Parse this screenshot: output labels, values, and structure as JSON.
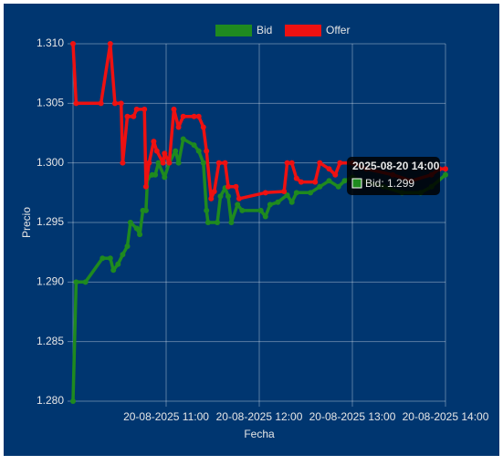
{
  "chart_data": {
    "type": "line",
    "ylabel": "Precio",
    "xlabel": "Fecha",
    "grid": true,
    "legend": "top",
    "ylim": [
      1.28,
      1.31
    ],
    "yticks": [
      {
        "value": 1.28,
        "label": "1.280"
      },
      1.285,
      {
        "value": 1.29,
        "label": "1.290"
      },
      1.295,
      {
        "value": 1.3,
        "label": "1.300"
      },
      1.305,
      {
        "value": 1.31,
        "label": "1.310"
      }
    ],
    "xlim": [
      "2025-08-20 10:00",
      "2025-08-20 14:00"
    ],
    "xticks": [
      {
        "value": "2025-08-20 11:00",
        "label": "20-08-2025 11:00"
      },
      {
        "value": "2025-08-20 12:00",
        "label": "20-08-2025 12:00"
      },
      {
        "value": "2025-08-20 13:00",
        "label": "20-08-2025 13:00"
      },
      {
        "value": "2025-08-20 14:00",
        "label": "20-08-2025 14:00"
      }
    ],
    "series": [
      {
        "name": "Bid",
        "color": "#1f8a1f",
        "x": [
          "2025-08-20 10:00",
          "2025-08-20 10:02",
          "2025-08-20 10:08",
          "2025-08-20 10:19",
          "2025-08-20 10:24",
          "2025-08-20 10:26",
          "2025-08-20 10:29",
          "2025-08-20 10:32",
          "2025-08-20 10:35",
          "2025-08-20 10:37",
          "2025-08-20 10:41",
          "2025-08-20 10:43",
          "2025-08-20 10:45",
          "2025-08-20 10:47",
          "2025-08-20 10:48",
          "2025-08-20 10:51",
          "2025-08-20 10:53",
          "2025-08-20 10:55",
          "2025-08-20 10:59",
          "2025-08-20 11:02",
          "2025-08-20 11:06",
          "2025-08-20 11:08",
          "2025-08-20 11:11",
          "2025-08-20 11:18",
          "2025-08-20 11:21",
          "2025-08-20 11:24",
          "2025-08-20 11:26",
          "2025-08-20 11:27",
          "2025-08-20 11:33",
          "2025-08-20 11:35",
          "2025-08-20 11:38",
          "2025-08-20 11:40",
          "2025-08-20 11:42",
          "2025-08-20 11:46",
          "2025-08-20 11:49",
          "2025-08-20 12:01",
          "2025-08-20 12:04",
          "2025-08-20 12:07",
          "2025-08-20 12:12",
          "2025-08-20 12:18",
          "2025-08-20 12:21",
          "2025-08-20 12:24",
          "2025-08-20 12:33",
          "2025-08-20 12:39",
          "2025-08-20 12:45",
          "2025-08-20 12:51",
          "2025-08-20 12:55",
          "2025-08-20 13:00",
          "2025-08-20 13:09",
          "2025-08-20 13:20",
          "2025-08-20 13:32",
          "2025-08-20 13:44",
          "2025-08-20 13:51",
          "2025-08-20 14:00"
        ],
        "values": [
          1.28,
          1.29,
          1.29,
          1.292,
          1.292,
          1.291,
          1.2915,
          1.2923,
          1.293,
          1.295,
          1.2945,
          1.294,
          1.296,
          1.296,
          1.2987,
          1.299,
          1.299,
          1.3,
          1.2988,
          1.3,
          1.301,
          1.3,
          1.302,
          1.3015,
          1.301,
          1.3,
          1.296,
          1.295,
          1.295,
          1.2972,
          1.2979,
          1.2972,
          1.295,
          1.2965,
          1.296,
          1.296,
          1.2955,
          1.2965,
          1.2967,
          1.2973,
          1.2967,
          1.2975,
          1.2975,
          1.298,
          1.2985,
          1.298,
          1.2985,
          1.2988,
          1.2984,
          1.298,
          1.2975,
          1.2975,
          1.298,
          1.299
        ]
      },
      {
        "name": "Offer",
        "color": "#ee1111",
        "x": [
          "2025-08-20 10:00",
          "2025-08-20 10:02",
          "2025-08-20 10:18",
          "2025-08-20 10:24",
          "2025-08-20 10:27",
          "2025-08-20 10:31",
          "2025-08-20 10:32",
          "2025-08-20 10:35",
          "2025-08-20 10:39",
          "2025-08-20 10:41",
          "2025-08-20 10:46",
          "2025-08-20 10:47",
          "2025-08-20 10:49",
          "2025-08-20 10:52",
          "2025-08-20 10:54",
          "2025-08-20 10:58",
          "2025-08-20 10:59",
          "2025-08-20 11:02",
          "2025-08-20 11:05",
          "2025-08-20 11:08",
          "2025-08-20 11:11",
          "2025-08-20 11:18",
          "2025-08-20 11:21",
          "2025-08-20 11:24",
          "2025-08-20 11:26",
          "2025-08-20 11:29",
          "2025-08-20 11:31",
          "2025-08-20 11:34",
          "2025-08-20 11:38",
          "2025-08-20 11:40",
          "2025-08-20 11:45",
          "2025-08-20 11:47",
          "2025-08-20 12:04",
          "2025-08-20 12:16",
          "2025-08-20 12:18",
          "2025-08-20 12:21",
          "2025-08-20 12:24",
          "2025-08-20 12:27",
          "2025-08-20 12:36",
          "2025-08-20 12:39",
          "2025-08-20 12:45",
          "2025-08-20 12:49",
          "2025-08-20 12:52",
          "2025-08-20 13:00",
          "2025-08-20 13:09",
          "2025-08-20 13:26",
          "2025-08-20 13:38",
          "2025-08-20 13:51",
          "2025-08-20 13:56",
          "2025-08-20 14:00"
        ],
        "values": [
          1.31,
          1.305,
          1.305,
          1.31,
          1.305,
          1.305,
          1.3,
          1.3039,
          1.3039,
          1.3045,
          1.3045,
          1.298,
          1.3,
          1.3018,
          1.301,
          1.3,
          1.3008,
          1.3,
          1.3045,
          1.303,
          1.3039,
          1.3039,
          1.3039,
          1.303,
          1.301,
          1.297,
          1.2976,
          1.3,
          1.3,
          1.298,
          1.298,
          1.297,
          1.2975,
          1.2976,
          1.3,
          1.3,
          1.2987,
          1.2984,
          1.2984,
          1.3,
          1.2995,
          1.299,
          1.3,
          1.3,
          1.2995,
          1.299,
          1.2985,
          1.299,
          1.2995,
          1.2995
        ]
      }
    ],
    "tooltip": {
      "title": "2025-08-20 14:00",
      "label": "Bid: 1.299"
    }
  }
}
